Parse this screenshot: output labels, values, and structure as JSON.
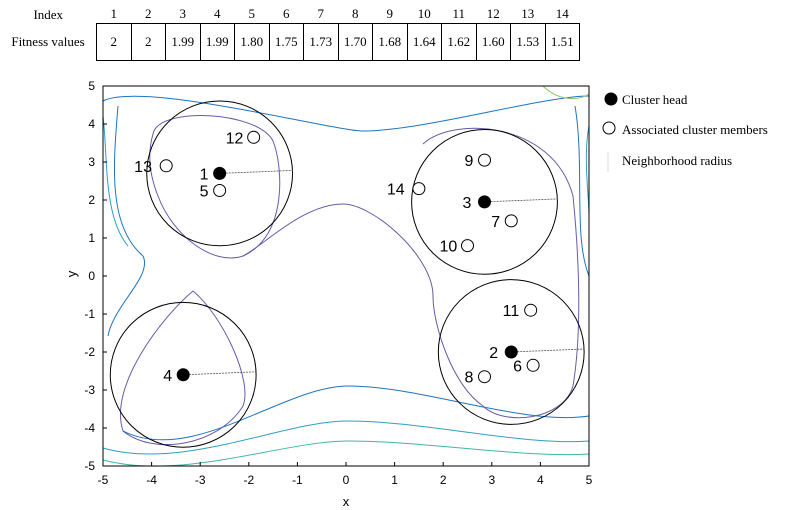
{
  "table": {
    "index_label": "Index",
    "fitness_label": "Fitness values",
    "index": [
      "1",
      "2",
      "3",
      "4",
      "5",
      "6",
      "7",
      "8",
      "9",
      "10",
      "11",
      "12",
      "13",
      "14"
    ],
    "fitness": [
      "2",
      "2",
      "1.99",
      "1.99",
      "1.80",
      "1.75",
      "1.73",
      "1.70",
      "1.68",
      "1.64",
      "1.62",
      "1.60",
      "1.53",
      "1.51"
    ]
  },
  "chart_data": {
    "type": "scatter",
    "title": "",
    "xlabel": "x",
    "ylabel": "y",
    "xlim": [
      -5,
      5
    ],
    "ylim": [
      -5,
      5
    ],
    "xticks": [
      "-5",
      "-4",
      "-3",
      "-2",
      "-1",
      "0",
      "1",
      "2",
      "3",
      "4",
      "5"
    ],
    "yticks": [
      "-5",
      "-4",
      "-3",
      "-2",
      "-1",
      "0",
      "1",
      "2",
      "3",
      "4",
      "5"
    ],
    "contour_colors": [
      "#1c74c4",
      "#2fa0c4",
      "#3fb8a4",
      "#8cc86a",
      "#c8c850"
    ],
    "series": [
      {
        "name": "Cluster head",
        "marker": "filled",
        "points": [
          {
            "label": "1",
            "x": -2.6,
            "y": 2.7
          },
          {
            "label": "2",
            "x": 3.4,
            "y": -2.0
          },
          {
            "label": "3",
            "x": 2.85,
            "y": 1.95
          },
          {
            "label": "4",
            "x": -3.35,
            "y": -2.6
          }
        ]
      },
      {
        "name": "Associated cluster members",
        "marker": "open",
        "points": [
          {
            "label": "5",
            "x": -2.6,
            "y": 2.25
          },
          {
            "label": "6",
            "x": 3.85,
            "y": -2.35
          },
          {
            "label": "7",
            "x": 3.4,
            "y": 1.45
          },
          {
            "label": "8",
            "x": 2.85,
            "y": -2.65
          },
          {
            "label": "9",
            "x": 2.85,
            "y": 3.05
          },
          {
            "label": "10",
            "x": 2.5,
            "y": 0.8
          },
          {
            "label": "11",
            "x": 3.8,
            "y": -0.9
          },
          {
            "label": "12",
            "x": -1.9,
            "y": 3.65
          },
          {
            "label": "13",
            "x": -3.7,
            "y": 2.9
          },
          {
            "label": "14",
            "x": 1.5,
            "y": 2.3
          }
        ]
      }
    ],
    "circles": [
      {
        "head": "1",
        "cx": -2.6,
        "cy": 2.7,
        "r": 1.5
      },
      {
        "head": "2",
        "cx": 3.4,
        "cy": -2.0,
        "r": 1.5
      },
      {
        "head": "3",
        "cx": 2.85,
        "cy": 1.95,
        "r": 1.5
      },
      {
        "head": "4",
        "cx": -3.35,
        "cy": -2.6,
        "r": 1.5
      }
    ],
    "legend": {
      "placement": "right",
      "entries": [
        "Cluster head",
        "Associated cluster members",
        "Neighborhood radius"
      ]
    }
  }
}
